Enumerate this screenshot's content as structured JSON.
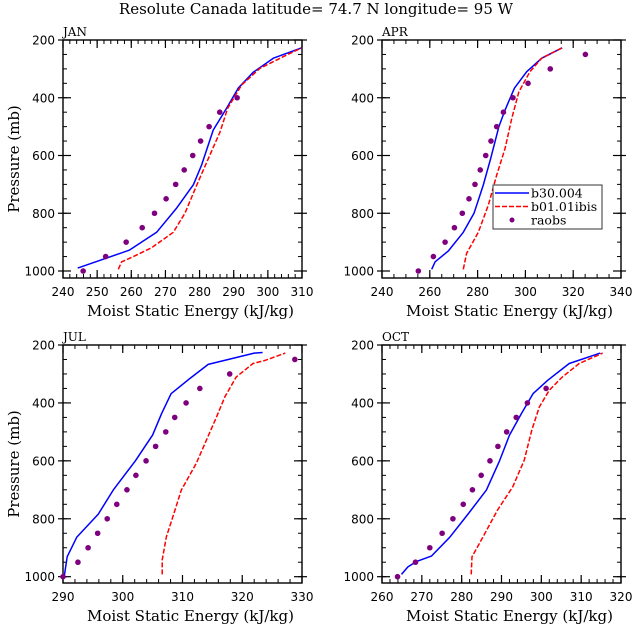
{
  "title": "Resolute Canada   latitude= 74.7 N longitude= 95 W",
  "colors": {
    "model_a": "#0000ff",
    "model_b": "#ff0000",
    "obs": "#7f007f",
    "frame": "#000000"
  },
  "legend": {
    "panel": "APR",
    "items": [
      {
        "label": "b30.004",
        "style": "solid",
        "color": "#0000ff"
      },
      {
        "label": "b01.01ibis",
        "style": "dashed",
        "color": "#ff0000"
      },
      {
        "label": "raobs",
        "style": "marker",
        "color": "#7f007f"
      }
    ]
  },
  "chart_data": [
    {
      "type": "line",
      "title": "JAN",
      "xlabel": "Moist Static Energy (kJ/kg)",
      "ylabel": "Pressure (mb)",
      "xlim": [
        240,
        310
      ],
      "ylim": [
        1000,
        200
      ],
      "y_inverted": true,
      "xticks": [
        240,
        250,
        260,
        270,
        280,
        290,
        300,
        310
      ],
      "x_minor_step": 2,
      "yticks": [
        200,
        400,
        600,
        800,
        1000
      ],
      "y_minor_step": 50,
      "show_ylabel": true,
      "grid": false,
      "series": [
        {
          "name": "b30.004",
          "style": "solid",
          "points": [
            [
              244.3,
              990
            ],
            [
              259.4,
              928
            ],
            [
              267.4,
              866
            ],
            [
              273.1,
              785
            ],
            [
              278.2,
              701
            ],
            [
              280.6,
              633
            ],
            [
              284.0,
              512
            ],
            [
              287.9,
              437
            ],
            [
              291.3,
              367
            ],
            [
              295.7,
              312
            ],
            [
              301.6,
              263
            ],
            [
              309.9,
              227
            ]
          ]
        },
        {
          "name": "b01.01ibis",
          "style": "dashed",
          "points": [
            [
              256.2,
              994
            ],
            [
              257.2,
              968
            ],
            [
              260.6,
              950
            ],
            [
              266.0,
              919
            ],
            [
              272.3,
              866
            ],
            [
              275.7,
              800
            ],
            [
              279.2,
              702
            ],
            [
              282.6,
              610
            ],
            [
              286.0,
              518
            ],
            [
              288.2,
              437
            ],
            [
              292.3,
              356
            ],
            [
              297.7,
              298
            ],
            [
              304.5,
              258
            ],
            [
              309.9,
              227
            ]
          ]
        },
        {
          "name": "raobs",
          "style": "marker",
          "points": [
            [
              245.9,
              1000
            ],
            [
              252.5,
              950
            ],
            [
              258.5,
              900
            ],
            [
              263.2,
              850
            ],
            [
              266.8,
              800
            ],
            [
              270.2,
              750
            ],
            [
              273.0,
              700
            ],
            [
              275.5,
              650
            ],
            [
              278.0,
              600
            ],
            [
              280.3,
              550
            ],
            [
              282.8,
              500
            ],
            [
              285.9,
              450
            ],
            [
              291.0,
              400
            ]
          ]
        }
      ]
    },
    {
      "type": "line",
      "title": "APR",
      "xlabel": "Moist Static Energy (kJ/kg)",
      "ylabel": "",
      "xlim": [
        240,
        340
      ],
      "ylim": [
        1000,
        200
      ],
      "y_inverted": true,
      "xticks": [
        240,
        260,
        280,
        300,
        320,
        340
      ],
      "x_minor_step": 5,
      "yticks": [
        200,
        400,
        600,
        800,
        1000
      ],
      "y_minor_step": 50,
      "show_ylabel": false,
      "grid": false,
      "legend": "right-center",
      "series": [
        {
          "name": "b30.004",
          "style": "solid",
          "points": [
            [
              260.8,
              994
            ],
            [
              262.2,
              968
            ],
            [
              267.7,
              931
            ],
            [
              274.0,
              866
            ],
            [
              278.5,
              800
            ],
            [
              282.4,
              702
            ],
            [
              285.5,
              610
            ],
            [
              288.9,
              500
            ],
            [
              291.5,
              442
            ],
            [
              295.4,
              367
            ],
            [
              300.5,
              310
            ],
            [
              306.8,
              263
            ],
            [
              315.4,
              227
            ]
          ]
        },
        {
          "name": "b01.01ibis",
          "style": "dashed",
          "points": [
            [
              274.0,
              994
            ],
            [
              275.4,
              939
            ],
            [
              280.3,
              866
            ],
            [
              284.5,
              771
            ],
            [
              288.0,
              668
            ],
            [
              291.5,
              575
            ],
            [
              294.3,
              471
            ],
            [
              297.3,
              379
            ],
            [
              301.9,
              310
            ],
            [
              306.8,
              263
            ],
            [
              315.4,
              227
            ]
          ]
        },
        {
          "name": "raobs",
          "style": "marker",
          "points": [
            [
              255.2,
              1000
            ],
            [
              261.5,
              950
            ],
            [
              266.4,
              900
            ],
            [
              270.3,
              850
            ],
            [
              273.6,
              800
            ],
            [
              276.4,
              750
            ],
            [
              278.9,
              700
            ],
            [
              281.1,
              650
            ],
            [
              283.4,
              600
            ],
            [
              285.6,
              550
            ],
            [
              288.0,
              500
            ],
            [
              290.8,
              450
            ],
            [
              294.8,
              400
            ],
            [
              301.1,
              350
            ],
            [
              310.4,
              300
            ],
            [
              325.1,
              250
            ]
          ]
        }
      ]
    },
    {
      "type": "line",
      "title": "JUL",
      "xlabel": "Moist Static Energy (kJ/kg)",
      "ylabel": "Pressure (mb)",
      "xlim": [
        290,
        330
      ],
      "ylim": [
        1000,
        200
      ],
      "y_inverted": true,
      "xticks": [
        290,
        300,
        310,
        320,
        330
      ],
      "x_minor_step": 2,
      "yticks": [
        200,
        400,
        600,
        800,
        1000
      ],
      "y_minor_step": 50,
      "show_ylabel": true,
      "grid": false,
      "series": [
        {
          "name": "b30.004",
          "style": "solid",
          "points": [
            [
              290.2,
              1000
            ],
            [
              290.7,
              931
            ],
            [
              292.3,
              864
            ],
            [
              295.9,
              784
            ],
            [
              298.4,
              701
            ],
            [
              302.1,
              600
            ],
            [
              305.0,
              511
            ],
            [
              306.5,
              437
            ],
            [
              308.1,
              368
            ],
            [
              311.2,
              316
            ],
            [
              314.3,
              267
            ],
            [
              322.0,
              228
            ],
            [
              323.4,
              226
            ]
          ]
        },
        {
          "name": "b01.01ibis",
          "style": "dashed",
          "points": [
            [
              306.6,
              992
            ],
            [
              306.6,
              942
            ],
            [
              307.3,
              862
            ],
            [
              308.3,
              799
            ],
            [
              309.8,
              701
            ],
            [
              312.3,
              609
            ],
            [
              315.7,
              448
            ],
            [
              317.1,
              379
            ],
            [
              319.0,
              310
            ],
            [
              321.8,
              264
            ],
            [
              323.8,
              253
            ],
            [
              327.2,
              228
            ]
          ]
        },
        {
          "name": "raobs",
          "style": "marker",
          "points": [
            [
              290.0,
              1000
            ],
            [
              292.5,
              950
            ],
            [
              294.2,
              900
            ],
            [
              295.8,
              850
            ],
            [
              297.4,
              800
            ],
            [
              299.0,
              750
            ],
            [
              300.7,
              700
            ],
            [
              302.2,
              650
            ],
            [
              303.9,
              600
            ],
            [
              305.5,
              550
            ],
            [
              307.2,
              500
            ],
            [
              308.7,
              450
            ],
            [
              310.6,
              400
            ],
            [
              312.9,
              350
            ],
            [
              317.9,
              300
            ],
            [
              328.8,
              250
            ]
          ]
        }
      ]
    },
    {
      "type": "line",
      "title": "OCT",
      "xlabel": "Moist Static Energy (kJ/kg)",
      "ylabel": "",
      "xlim": [
        260,
        320
      ],
      "ylim": [
        1000,
        200
      ],
      "y_inverted": true,
      "xticks": [
        260,
        270,
        280,
        290,
        300,
        310,
        320
      ],
      "x_minor_step": 2,
      "yticks": [
        200,
        400,
        600,
        800,
        1000
      ],
      "y_minor_step": 50,
      "show_ylabel": false,
      "grid": false,
      "series": [
        {
          "name": "b30.004",
          "style": "solid",
          "points": [
            [
              264.9,
              992
            ],
            [
              266.5,
              966
            ],
            [
              268.6,
              948
            ],
            [
              272.4,
              929
            ],
            [
              277.0,
              864
            ],
            [
              281.6,
              784
            ],
            [
              286.2,
              701
            ],
            [
              289.5,
              600
            ],
            [
              292.0,
              511
            ],
            [
              295.0,
              437
            ],
            [
              297.9,
              368
            ],
            [
              301.6,
              322
            ],
            [
              307.0,
              264
            ],
            [
              314.8,
              228
            ]
          ]
        },
        {
          "name": "b01.01ibis",
          "style": "dashed",
          "points": [
            [
              282.4,
              992
            ],
            [
              282.6,
              931
            ],
            [
              285.3,
              864
            ],
            [
              289.0,
              770
            ],
            [
              292.8,
              690
            ],
            [
              295.7,
              598
            ],
            [
              297.6,
              494
            ],
            [
              299.5,
              414
            ],
            [
              302.0,
              356
            ],
            [
              305.3,
              310
            ],
            [
              309.5,
              264
            ],
            [
              315.4,
              228
            ]
          ]
        },
        {
          "name": "raobs",
          "style": "marker",
          "points": [
            [
              263.9,
              1000
            ],
            [
              268.4,
              950
            ],
            [
              272.0,
              900
            ],
            [
              275.1,
              850
            ],
            [
              277.8,
              800
            ],
            [
              280.4,
              750
            ],
            [
              282.7,
              700
            ],
            [
              284.9,
              650
            ],
            [
              287.1,
              600
            ],
            [
              289.1,
              550
            ],
            [
              291.3,
              500
            ],
            [
              293.7,
              450
            ],
            [
              296.5,
              400
            ],
            [
              301.2,
              350
            ]
          ]
        }
      ]
    }
  ]
}
